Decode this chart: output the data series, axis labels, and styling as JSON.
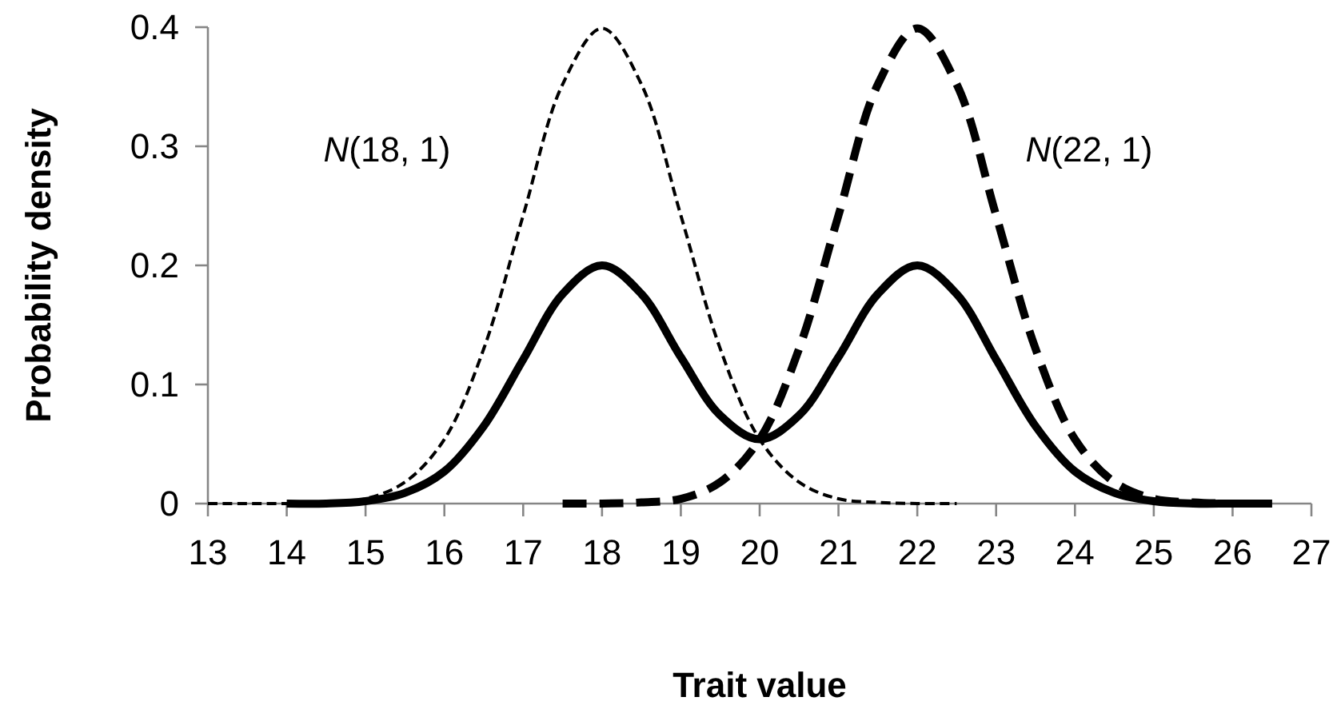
{
  "chart_data": {
    "type": "line",
    "xlabel": "Trait value",
    "ylabel": "Probability density",
    "xlim": [
      13,
      27
    ],
    "xticks": [
      13,
      14,
      15,
      16,
      17,
      18,
      19,
      20,
      21,
      22,
      23,
      24,
      25,
      26,
      27
    ],
    "ylim": [
      0,
      0.4
    ],
    "yticks": [
      0,
      0.1,
      0.2,
      0.3,
      0.4
    ],
    "grid": false,
    "marker": "none",
    "series": [
      {
        "color": "#000000",
        "line_style": "dashed",
        "x": [
          13,
          13.5,
          14,
          14.5,
          15,
          15.5,
          16,
          16.5,
          17,
          17.5,
          18,
          18.5,
          19,
          19.5,
          20,
          20.5,
          21,
          21.5,
          22,
          22.5
        ],
        "values": [
          0,
          0,
          0,
          0.001,
          0.004,
          0.018,
          0.054,
          0.13,
          0.242,
          0.352,
          0.399,
          0.352,
          0.242,
          0.13,
          0.054,
          0.018,
          0.004,
          0.001,
          0,
          0
        ]
      },
      {
        "color": "#000000",
        "line_style": "dashed",
        "x": [
          17.5,
          18,
          18.5,
          19,
          19.5,
          20,
          20.5,
          21,
          21.5,
          22,
          22.5,
          23,
          23.5,
          24,
          24.5,
          25,
          25.5,
          26,
          26.5
        ],
        "values": [
          0,
          0,
          0.001,
          0.004,
          0.018,
          0.054,
          0.13,
          0.242,
          0.352,
          0.399,
          0.352,
          0.242,
          0.13,
          0.054,
          0.018,
          0.004,
          0.001,
          0,
          0
        ]
      },
      {
        "color": "#000000",
        "line_style": "solid",
        "x": [
          14,
          14.5,
          15,
          15.5,
          16,
          16.5,
          17,
          17.5,
          18,
          18.5,
          19,
          19.5,
          20,
          20.5,
          21,
          21.5,
          22,
          22.5,
          23,
          23.5,
          24,
          24.5,
          25,
          25.5,
          26,
          26.5
        ],
        "values": [
          0,
          0,
          0.002,
          0.009,
          0.027,
          0.065,
          0.121,
          0.176,
          0.2,
          0.176,
          0.123,
          0.074,
          0.054,
          0.074,
          0.123,
          0.176,
          0.2,
          0.176,
          0.121,
          0.065,
          0.027,
          0.009,
          0.002,
          0,
          0,
          0
        ]
      }
    ],
    "annotations": [
      "N(18, 1)",
      "N(22, 1)"
    ]
  }
}
